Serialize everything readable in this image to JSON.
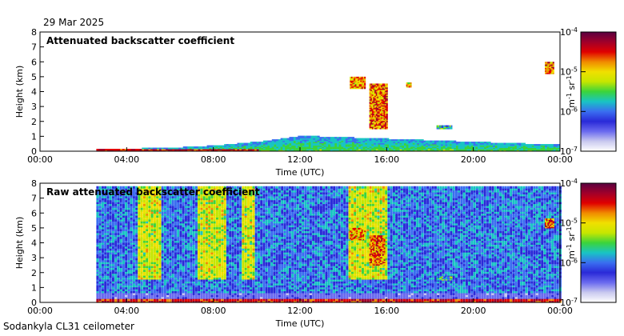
{
  "date_label": "29 Mar 2025",
  "footer_label": "Sodankyla CL31 ceilometer",
  "colors": {
    "cmap": [
      "#ffffff",
      "#c9c9ef",
      "#6a6aef",
      "#2a2ad8",
      "#3a6ef0",
      "#19c4c4",
      "#3bd43b",
      "#c6e600",
      "#f0e000",
      "#f08a00",
      "#e00000",
      "#a0002a",
      "#5a0040"
    ],
    "frame": "#000000"
  },
  "chart_data": [
    {
      "type": "heatmap",
      "title": "Attenuated backscatter coefficient",
      "xlabel": "Time (UTC)",
      "ylabel": "Height (km)",
      "xlim": [
        0,
        24
      ],
      "ylim": [
        0,
        8
      ],
      "xticks": [
        "00:00",
        "04:00",
        "08:00",
        "12:00",
        "16:00",
        "20:00",
        "00:00"
      ],
      "yticks": [
        "0",
        "1",
        "2",
        "3",
        "4",
        "5",
        "6",
        "7",
        "8"
      ],
      "colorbar": {
        "label": "m-1 sr-1",
        "ticks": [
          "10-7",
          "10-6",
          "10-5",
          "10-4"
        ],
        "scale": "log",
        "range": [
          1e-07,
          0.0001
        ]
      },
      "features": {
        "data_start_hour": 2.6,
        "surface_layer": [
          [
            2.6,
            0.1
          ],
          [
            6,
            0.2
          ],
          [
            8,
            0.35
          ],
          [
            10,
            0.6
          ],
          [
            12,
            1.0
          ],
          [
            14,
            0.9
          ],
          [
            16,
            0.8
          ],
          [
            18,
            0.7
          ],
          [
            20,
            0.6
          ],
          [
            22,
            0.5
          ],
          [
            24,
            0.4
          ]
        ],
        "clouds": [
          {
            "t0": 14.3,
            "t1": 15.0,
            "h0": 4.2,
            "h1": 5.0,
            "level": 1.4e-05
          },
          {
            "t0": 15.2,
            "t1": 16.0,
            "h0": 1.5,
            "h1": 4.5,
            "level": 2e-05
          },
          {
            "t0": 16.9,
            "t1": 17.1,
            "h0": 4.3,
            "h1": 4.6,
            "level": 8e-06
          },
          {
            "t0": 18.3,
            "t1": 19.0,
            "h0": 1.5,
            "h1": 1.7,
            "level": 2e-06
          },
          {
            "t0": 23.3,
            "t1": 23.7,
            "h0": 5.2,
            "h1": 6.0,
            "level": 2e-05
          }
        ]
      }
    },
    {
      "type": "heatmap",
      "title": "Raw attenuated backscatter coefficient",
      "xlabel": "Time (UTC)",
      "ylabel": "Height (km)",
      "xlim": [
        0,
        24
      ],
      "ylim": [
        0,
        8
      ],
      "xticks": [
        "00:00",
        "04:00",
        "08:00",
        "12:00",
        "16:00",
        "20:00",
        "00:00"
      ],
      "yticks": [
        "0",
        "1",
        "2",
        "3",
        "4",
        "5",
        "6",
        "7",
        "8"
      ],
      "colorbar": {
        "label": "m-1 sr-1",
        "ticks": [
          "10-7",
          "10-6",
          "10-5",
          "10-4"
        ],
        "scale": "log",
        "range": [
          1e-07,
          0.0001
        ]
      },
      "features": {
        "data_start_hour": 2.6,
        "data_top_km": 7.7,
        "noisy_bands": [
          [
            4.5,
            5.5
          ],
          [
            7.2,
            8.5
          ],
          [
            9.3,
            9.8
          ],
          [
            14.2,
            16.0
          ]
        ],
        "clouds": [
          {
            "t0": 14.3,
            "t1": 15.0,
            "h0": 4.2,
            "h1": 5.0,
            "level": 1.4e-05
          },
          {
            "t0": 15.2,
            "t1": 15.9,
            "h0": 2.5,
            "h1": 4.5,
            "level": 2e-05
          },
          {
            "t0": 18.3,
            "t1": 19.0,
            "h0": 1.5,
            "h1": 1.7,
            "level": 2e-06
          },
          {
            "t0": 23.3,
            "t1": 23.7,
            "h0": 5.0,
            "h1": 5.6,
            "level": 2e-05
          }
        ]
      }
    }
  ]
}
